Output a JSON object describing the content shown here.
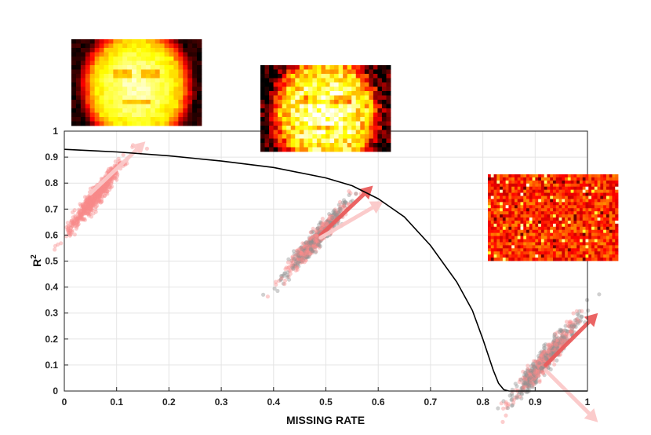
{
  "chart_data": {
    "type": "scatter",
    "xlabel": "MISSING RATE",
    "ylabel": "R",
    "ylabel_superscript": "2",
    "xlim": [
      0,
      1
    ],
    "ylim": [
      0,
      1
    ],
    "x_ticks": [
      "0",
      "0.1",
      "0.2",
      "0.3",
      "0.4",
      "0.5",
      "0.6",
      "0.7",
      "0.8",
      "0.9",
      "1"
    ],
    "y_ticks": [
      "0",
      "0.1",
      "0.2",
      "0.3",
      "0.4",
      "0.5",
      "0.6",
      "0.7",
      "0.8",
      "0.9",
      "1"
    ],
    "grid": true,
    "curve": {
      "color": "#000000",
      "x": [
        0.0,
        0.1,
        0.2,
        0.3,
        0.4,
        0.5,
        0.55,
        0.6,
        0.65,
        0.7,
        0.75,
        0.78,
        0.8,
        0.82,
        0.83,
        0.84,
        0.85,
        0.9,
        1.0
      ],
      "y": [
        0.93,
        0.92,
        0.905,
        0.885,
        0.86,
        0.82,
        0.79,
        0.74,
        0.67,
        0.56,
        0.42,
        0.31,
        0.2,
        0.08,
        0.03,
        0.005,
        0.0,
        0.0,
        0.0
      ]
    },
    "clusters": [
      {
        "name": "",
        "center": [
          0.06,
          0.75
        ],
        "spread": [
          0.032,
          0.075
        ],
        "count": 650,
        "colors": [
          "#f78a8a"
        ],
        "seed": 11
      },
      {
        "name": "",
        "center": [
          0.48,
          0.58
        ],
        "spread": [
          0.035,
          0.075
        ],
        "count": 700,
        "colors": [
          "#f78a8a",
          "#8f8f8f"
        ],
        "seed": 23
      },
      {
        "name": "",
        "center": [
          0.92,
          0.12
        ],
        "spread": [
          0.038,
          0.085
        ],
        "count": 750,
        "colors": [
          "#8f8f8f",
          "#f78a8a"
        ],
        "seed": 37
      }
    ],
    "arrows": [
      {
        "from": [
          0.05,
          0.76
        ],
        "to": [
          0.155,
          0.96
        ],
        "color": "#fbc9c9"
      },
      {
        "from": [
          0.49,
          0.6
        ],
        "to": [
          0.59,
          0.79
        ],
        "color": "#ea5c5c"
      },
      {
        "from": [
          0.49,
          0.59
        ],
        "to": [
          0.61,
          0.73
        ],
        "color": "#fbc9c9"
      },
      {
        "from": [
          0.92,
          0.1
        ],
        "to": [
          1.02,
          0.3
        ],
        "color": "#ea5c5c"
      },
      {
        "from": [
          0.92,
          0.08
        ],
        "to": [
          1.02,
          -0.12
        ],
        "color": "#fbc9c9"
      }
    ],
    "insets": [
      {
        "name": "face-inset-low-missing",
        "kind": "face",
        "noise": 0.05,
        "seed": 3
      },
      {
        "name": "face-inset-mid-missing",
        "kind": "face",
        "noise": 0.18,
        "seed": 5
      },
      {
        "name": "noise-inset-high-missing",
        "kind": "noise",
        "noise": 1.0,
        "seed": 7
      }
    ]
  }
}
